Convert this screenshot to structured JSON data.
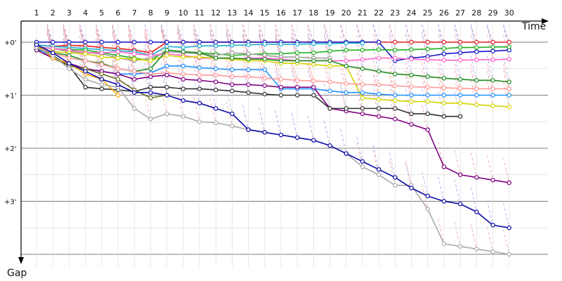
{
  "chart_data": {
    "type": "line",
    "xlabel": "Time",
    "ylabel": "Gap",
    "x_ticks": [
      "1",
      "2",
      "3",
      "4",
      "5",
      "6",
      "7",
      "8",
      "9",
      "10",
      "11",
      "12",
      "13",
      "14",
      "15",
      "16",
      "17",
      "18",
      "19",
      "20",
      "21",
      "22",
      "23",
      "24",
      "25",
      "26",
      "27",
      "28",
      "29",
      "30"
    ],
    "y_ticks": [
      "+0'",
      "+1'",
      "+2'",
      "+3'"
    ],
    "y_unit": "minutes",
    "grid": true,
    "x_range": [
      0,
      31
    ],
    "y_range": [
      0,
      4.3
    ],
    "series": [
      {
        "color": "#e02020",
        "values": [
          0.05,
          0.08,
          0.06,
          0.07,
          0.1,
          0.12,
          0.15,
          0.2,
          0.0,
          0.0,
          0.0,
          0.0,
          0.0,
          0.0,
          0.0,
          0.0,
          0.0,
          0.0,
          0.0,
          0.0,
          0.0,
          0.0,
          0.0,
          0.0,
          0.0,
          0.0,
          0.0,
          0.0,
          0.0,
          0.0
        ]
      },
      {
        "color": "#1414c8",
        "values": [
          0.0,
          0.0,
          0.0,
          0.0,
          0.0,
          0.0,
          0.0,
          0.0,
          0.0,
          0.0,
          0.0,
          0.0,
          0.0,
          0.0,
          0.0,
          0.0,
          0.0,
          0.0,
          0.0,
          0.0,
          0.0,
          0.0,
          0.35,
          0.3,
          0.27,
          0.22,
          0.2,
          0.18,
          0.17,
          0.15
        ]
      },
      {
        "color": "#20b2d0",
        "values": [
          0.05,
          0.08,
          0.1,
          0.12,
          0.14,
          0.16,
          0.18,
          0.25,
          0.08,
          0.1,
          0.07,
          0.07,
          0.06,
          0.05,
          0.04,
          0.04,
          0.04,
          0.03,
          0.03,
          0.02,
          0.02,
          null,
          null,
          null,
          null,
          null,
          null,
          null,
          null,
          null
        ]
      },
      {
        "color": "#20b020",
        "values": [
          0.1,
          0.12,
          0.14,
          0.15,
          0.2,
          0.25,
          0.3,
          0.35,
          0.15,
          0.18,
          0.2,
          0.22,
          0.25,
          0.23,
          0.22,
          0.22,
          0.2,
          0.2,
          0.17,
          0.15,
          0.15,
          0.14,
          0.15,
          0.14,
          0.13,
          0.12,
          0.1,
          0.1,
          0.09,
          0.09
        ]
      },
      {
        "color": "#a0a0a0",
        "values": [
          0.08,
          0.12,
          0.18,
          0.2,
          0.22,
          0.3,
          0.35,
          0.3,
          0.18,
          0.2,
          0.22,
          0.25,
          0.2,
          0.22,
          0.25,
          0.28,
          0.28,
          0.3,
          0.3,
          null,
          null,
          null,
          null,
          null,
          null,
          null,
          null,
          null,
          null,
          null
        ]
      },
      {
        "color": "#ff66cc",
        "values": [
          0.1,
          0.12,
          0.15,
          0.2,
          0.2,
          0.18,
          0.22,
          0.25,
          0.22,
          0.25,
          0.3,
          0.3,
          0.32,
          0.3,
          0.3,
          0.32,
          0.35,
          0.35,
          0.35,
          0.35,
          0.33,
          0.3,
          0.3,
          0.32,
          0.33,
          0.34,
          0.34,
          0.33,
          0.33,
          0.32
        ]
      },
      {
        "color": "#d4d400",
        "values": [
          0.12,
          0.18,
          0.2,
          0.22,
          0.28,
          0.3,
          0.32,
          0.35,
          0.25,
          0.28,
          0.28,
          0.3,
          0.32,
          0.35,
          0.35,
          0.4,
          0.4,
          0.42,
          0.45,
          0.45,
          1.05,
          1.08,
          1.1,
          1.12,
          1.12,
          1.15,
          1.15,
          1.18,
          1.2,
          1.22
        ]
      },
      {
        "color": "#228b22",
        "values": [
          0.15,
          0.2,
          0.25,
          0.35,
          0.4,
          0.5,
          0.55,
          0.5,
          0.15,
          0.18,
          0.2,
          0.3,
          0.3,
          0.32,
          0.32,
          0.35,
          0.35,
          0.35,
          0.35,
          0.45,
          0.5,
          0.55,
          0.6,
          0.62,
          0.65,
          0.68,
          0.7,
          0.72,
          0.72,
          0.75
        ]
      },
      {
        "color": "#1e90ff",
        "values": [
          0.1,
          0.3,
          0.45,
          0.5,
          0.55,
          0.6,
          0.6,
          0.58,
          0.45,
          0.45,
          0.48,
          0.5,
          0.52,
          0.52,
          0.52,
          0.88,
          0.88,
          0.88,
          0.92,
          0.95,
          0.95,
          0.98,
          1.0,
          1.0,
          1.0,
          1.0,
          1.0,
          1.0,
          1.0,
          1.0
        ]
      },
      {
        "color": "#ff9999",
        "values": [
          0.1,
          0.2,
          0.3,
          0.35,
          0.42,
          0.5,
          0.55,
          0.6,
          0.58,
          0.6,
          0.62,
          0.62,
          0.65,
          0.65,
          0.68,
          0.7,
          0.72,
          0.73,
          0.75,
          0.78,
          0.8,
          0.8,
          0.82,
          0.84,
          0.85,
          0.86,
          0.87,
          0.88,
          0.88,
          0.88
        ]
      },
      {
        "color": "#800080",
        "values": [
          0.15,
          0.3,
          0.4,
          0.5,
          0.55,
          0.6,
          0.7,
          0.65,
          0.62,
          0.7,
          0.72,
          0.75,
          0.8,
          0.8,
          0.82,
          0.85,
          0.85,
          0.85,
          1.25,
          1.3,
          1.35,
          1.4,
          1.45,
          1.55,
          1.65,
          2.35,
          2.5,
          2.55,
          2.6,
          2.65
        ]
      },
      {
        "color": "#303030",
        "values": [
          0.1,
          0.25,
          0.45,
          0.85,
          0.88,
          0.9,
          0.93,
          0.85,
          0.85,
          0.88,
          0.88,
          0.9,
          0.92,
          0.95,
          0.98,
          1.0,
          1.0,
          1.0,
          1.25,
          1.25,
          1.25,
          1.25,
          1.25,
          1.35,
          1.35,
          1.4,
          1.4,
          null,
          null,
          null
        ]
      },
      {
        "color": "#6b6b20",
        "values": [
          0.05,
          0.3,
          0.45,
          0.5,
          0.6,
          0.7,
          0.9,
          1.05,
          1.0,
          null,
          null,
          null,
          null,
          null,
          null,
          null,
          null,
          null,
          null,
          null,
          null,
          null,
          null,
          null,
          null,
          null,
          null,
          null,
          null,
          null
        ]
      },
      {
        "color": "#ffa500",
        "values": [
          0.05,
          0.3,
          0.4,
          0.6,
          0.7,
          1.0,
          null,
          null,
          null,
          null,
          null,
          null,
          null,
          null,
          null,
          null,
          null,
          null,
          null,
          null,
          null,
          null,
          null,
          null,
          null,
          null,
          null,
          null,
          null,
          null
        ]
      },
      {
        "color": "#aaaaaa",
        "values": [
          0.1,
          0.25,
          0.5,
          0.7,
          0.8,
          0.85,
          1.25,
          1.45,
          1.35,
          1.4,
          1.5,
          1.52,
          1.58,
          1.65,
          1.7,
          1.75,
          1.8,
          1.85,
          1.95,
          2.1,
          2.35,
          2.5,
          2.7,
          2.7,
          3.15,
          3.8,
          3.85,
          3.9,
          3.95,
          4.0
        ]
      },
      {
        "color": "#0a0aa8",
        "values": [
          0.05,
          0.2,
          0.4,
          0.55,
          0.7,
          0.8,
          0.95,
          0.95,
          1.0,
          1.1,
          1.15,
          1.25,
          1.35,
          1.65,
          1.7,
          1.75,
          1.8,
          1.85,
          1.95,
          2.1,
          2.25,
          2.4,
          2.55,
          2.75,
          2.9,
          3.0,
          3.05,
          3.2,
          3.45,
          3.5
        ]
      }
    ]
  }
}
